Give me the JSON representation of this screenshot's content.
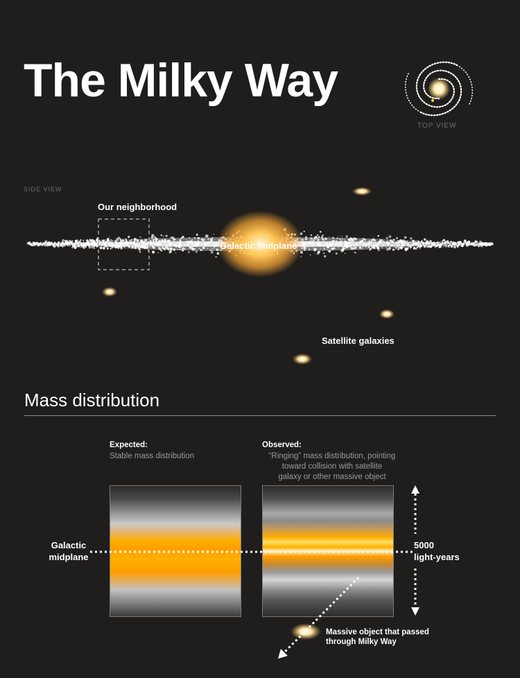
{
  "header": {
    "title": "The Milky Way",
    "top_view_label": "TOP VIEW"
  },
  "side_view": {
    "label": "SIDE VIEW",
    "neighborhood": "Our neighborhood",
    "midplane": "Galactic midplane",
    "satellites": "Satellite galaxies"
  },
  "mass": {
    "title": "Mass distribution",
    "expected": {
      "heading": "Expected:",
      "desc": "Stable mass distribution"
    },
    "observed": {
      "heading": "Observed:",
      "desc_lines": [
        "“Ringing” mass distribution, pointing",
        "toward collision with satellite",
        "galaxy or other massive object"
      ]
    },
    "midplane_lines": [
      "Galactic",
      "midplane"
    ],
    "scale_lines": [
      "5000",
      "light-years"
    ],
    "massive_object_lines": [
      "Massive object that passed",
      "through Milky Way"
    ]
  },
  "colors": {
    "background": "#1f1e1d",
    "core": "#ffb000",
    "stars": "#ffffff",
    "label_gray": "#6c6c6c"
  }
}
